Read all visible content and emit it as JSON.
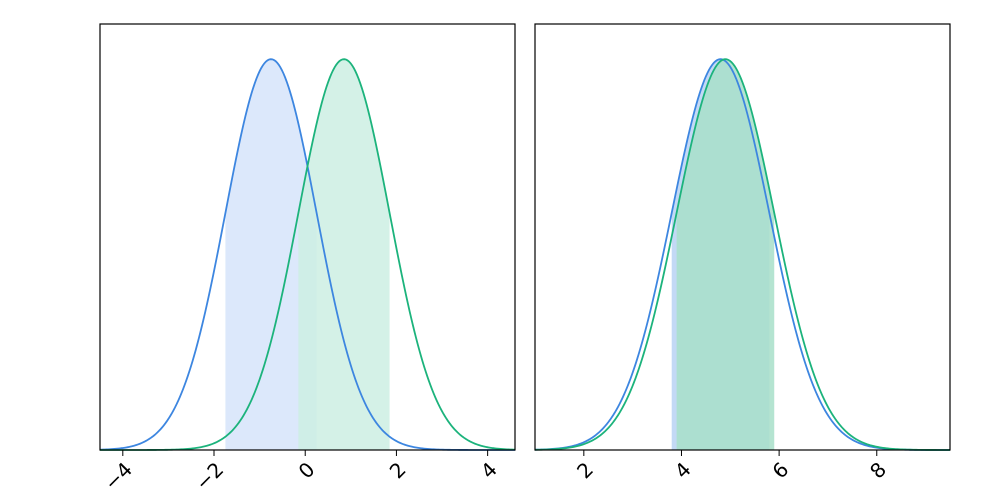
{
  "chart_data": [
    {
      "type": "area",
      "title": "",
      "xlabel": "",
      "ylabel": "",
      "xlim": [
        -4.5,
        4.6
      ],
      "ylim": [
        0,
        1.09
      ],
      "xticks": [
        -4,
        -2,
        0,
        2,
        4
      ],
      "xtick_labels": [
        "−4",
        "−2",
        "0",
        "2",
        "4"
      ],
      "yticks": [],
      "grid": false,
      "series": [
        {
          "mean": -0.75,
          "sd": 1.0,
          "color": "#3d86e0",
          "fill": "#d6e4fa",
          "shade_range": [
            -1.75,
            0.25
          ]
        },
        {
          "mean": 0.85,
          "sd": 1.0,
          "color": "#1cb37c",
          "fill": "#cdefe3",
          "shade_range": [
            -0.15,
            1.85
          ]
        }
      ]
    },
    {
      "type": "area",
      "title": "",
      "xlabel": "",
      "ylabel": "",
      "xlim": [
        1.0,
        9.5
      ],
      "ylim": [
        0,
        1.09
      ],
      "xticks": [
        2,
        4,
        6,
        8
      ],
      "xtick_labels": [
        "2",
        "4",
        "6",
        "8"
      ],
      "yticks": [],
      "grid": false,
      "series": [
        {
          "mean": 4.8,
          "sd": 1.0,
          "color": "#3d86e0",
          "fill": "#b8d2f3",
          "shade_range": [
            3.8,
            5.8
          ]
        },
        {
          "mean": 4.9,
          "sd": 1.0,
          "color": "#1cb37c",
          "fill": "#a8dfc9",
          "shade_range": [
            3.9,
            5.9
          ]
        }
      ]
    }
  ]
}
